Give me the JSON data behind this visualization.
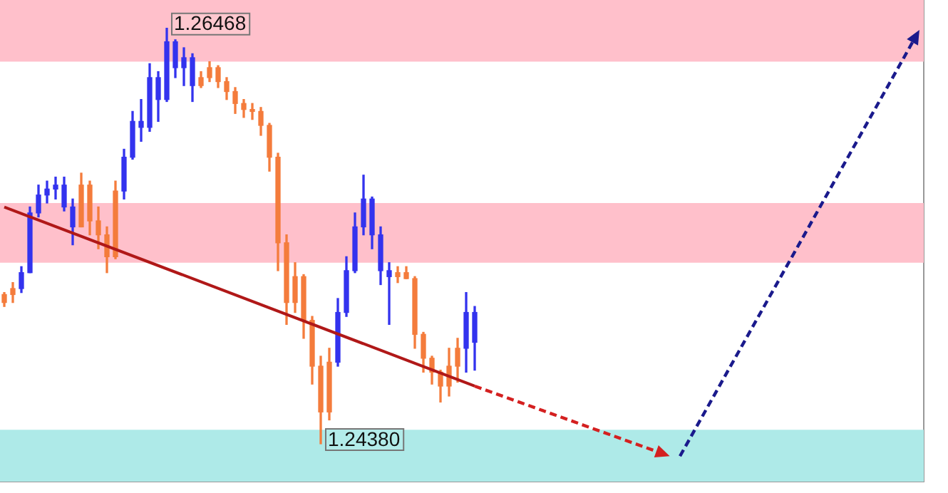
{
  "chart_data": {
    "type": "candlestick",
    "tick_labels": false,
    "grid": false,
    "legend": false,
    "categories": [
      null,
      null,
      null,
      null,
      null,
      null,
      null,
      null,
      null,
      null,
      null,
      null,
      null,
      null,
      null,
      null,
      null,
      null,
      null,
      null,
      null,
      null,
      null,
      null,
      null,
      null,
      null,
      null,
      null,
      null,
      null,
      null,
      null,
      null,
      null,
      null,
      null,
      null,
      null,
      null,
      null,
      null,
      null,
      null,
      null,
      null,
      null,
      null,
      null,
      null,
      null,
      null,
      null,
      null,
      null,
      null,
      null,
      null,
      null,
      null,
      null,
      null,
      null,
      null,
      null,
      null,
      null,
      null,
      null,
      null,
      null,
      null,
      null,
      null,
      null,
      null,
      null,
      null,
      null,
      null,
      null,
      null,
      null,
      null,
      null,
      null,
      null,
      null,
      null,
      null,
      null,
      null,
      null,
      null,
      null,
      null,
      null,
      null,
      null,
      null,
      null,
      null,
      null,
      null,
      null,
      null,
      null,
      null
    ],
    "ylim": [
      1.2419,
      1.2661
    ],
    "ohlc": [
      [
        1.2513,
        1.2514,
        1.2507,
        1.2509
      ],
      [
        1.2516,
        1.2519,
        1.2509,
        1.2513
      ],
      [
        1.2516,
        1.2527,
        1.2514,
        1.2524
      ],
      [
        1.2524,
        1.2557,
        1.2524,
        1.2554
      ],
      [
        1.2554,
        1.2568,
        1.2552,
        1.2563
      ],
      [
        1.2563,
        1.257,
        1.2559,
        1.2566
      ],
      [
        1.2566,
        1.2572,
        1.2561,
        1.2568
      ],
      [
        1.2557,
        1.2572,
        1.2555,
        1.2568
      ],
      [
        1.2547,
        1.2561,
        1.2538,
        1.2557
      ],
      [
        1.2568,
        1.2574,
        1.2547,
        1.2547
      ],
      [
        1.2568,
        1.257,
        1.2543,
        1.255
      ],
      [
        1.255,
        1.2557,
        1.2536,
        1.2543
      ],
      [
        1.2543,
        1.2547,
        1.2524,
        1.2532
      ],
      [
        1.2565,
        1.257,
        1.2531,
        1.2532
      ],
      [
        1.2565,
        1.2586,
        1.2561,
        1.2582
      ],
      [
        1.2582,
        1.2605,
        1.2581,
        1.26
      ],
      [
        1.2597,
        1.2611,
        1.259,
        1.26
      ],
      [
        1.2597,
        1.2629,
        1.2595,
        1.2622
      ],
      [
        1.2611,
        1.2625,
        1.26,
        1.2622
      ],
      [
        1.2611,
        1.26468,
        1.261,
        1.264
      ],
      [
        1.2627,
        1.2641,
        1.2622,
        1.264
      ],
      [
        1.2627,
        1.2637,
        1.2618,
        1.2632
      ],
      [
        1.2618,
        1.2634,
        1.261,
        1.2632
      ],
      [
        1.2622,
        1.2625,
        1.2617,
        1.2618
      ],
      [
        1.2627,
        1.263,
        1.262,
        1.2622
      ],
      [
        1.2627,
        1.2628,
        1.2617,
        1.262
      ],
      [
        1.262,
        1.2622,
        1.2611,
        1.2615
      ],
      [
        1.2615,
        1.2617,
        1.2604,
        1.2609
      ],
      [
        1.2609,
        1.2611,
        1.2602,
        1.2606
      ],
      [
        1.2606,
        1.2609,
        1.2601,
        1.2605
      ],
      [
        1.2605,
        1.2607,
        1.2593,
        1.2598
      ],
      [
        1.2598,
        1.2599,
        1.2575,
        1.2582
      ],
      [
        1.2582,
        1.2584,
        1.2525,
        1.2539
      ],
      [
        1.2539,
        1.2543,
        1.2498,
        1.2509
      ],
      [
        1.2522,
        1.2529,
        1.2504,
        1.2509
      ],
      [
        1.2522,
        1.2523,
        1.2491,
        1.25
      ],
      [
        1.25,
        1.2502,
        1.2468,
        1.2477
      ],
      [
        1.2477,
        1.2482,
        1.2438,
        1.2454
      ],
      [
        1.2479,
        1.2486,
        1.245,
        1.2454
      ],
      [
        1.2479,
        1.2511,
        1.2477,
        1.2504
      ],
      [
        1.2504,
        1.2532,
        1.2502,
        1.2525
      ],
      [
        1.2525,
        1.2554,
        1.2524,
        1.2547
      ],
      [
        1.2547,
        1.2573,
        1.2543,
        1.2561
      ],
      [
        1.2543,
        1.2562,
        1.2536,
        1.2561
      ],
      [
        1.2525,
        1.2547,
        1.2518,
        1.2543
      ],
      [
        1.2522,
        1.2529,
        1.2498,
        1.2525
      ],
      [
        1.2524,
        1.2527,
        1.2519,
        1.2522
      ],
      [
        1.2524,
        1.2527,
        1.2521,
        1.2521
      ],
      [
        1.2521,
        1.2522,
        1.2486,
        1.2493
      ],
      [
        1.2493,
        1.2494,
        1.2474,
        1.2481
      ],
      [
        1.2481,
        1.2482,
        1.2468,
        1.2474
      ],
      [
        1.2474,
        1.2475,
        1.2459,
        1.2467
      ],
      [
        1.2477,
        1.2486,
        1.2462,
        1.2467
      ],
      [
        1.2486,
        1.2491,
        1.2469,
        1.2477
      ],
      [
        1.2486,
        1.2514,
        1.2474,
        1.2504
      ],
      [
        1.2489,
        1.2507,
        1.2475,
        1.2504
      ],
      null,
      null,
      null,
      null,
      null,
      null,
      null,
      null,
      null,
      null,
      null,
      null,
      null,
      null,
      null,
      null,
      null,
      null,
      null,
      null,
      null,
      null,
      null,
      null,
      null,
      null,
      null,
      null,
      null,
      null,
      null,
      null,
      null,
      null,
      null,
      null,
      null,
      null,
      null,
      null,
      null,
      null,
      null,
      null,
      null,
      null,
      null,
      null,
      null,
      null,
      null,
      null
    ],
    "colors": [
      "#f47c3c",
      "#f47c3c",
      "#3333ee",
      "#3333ee",
      "#3333ee",
      "#3333ee",
      "#3333ee",
      "#3333ee",
      "#3333ee",
      "#f47c3c",
      "#f47c3c",
      "#f47c3c",
      "#f47c3c",
      "#f47c3c",
      "#3333ee",
      "#3333ee",
      "#3333ee",
      "#3333ee",
      "#3333ee",
      "#3333ee",
      "#3333ee",
      "#3333ee",
      "#3333ee",
      "#f47c3c",
      "#f47c3c",
      "#f47c3c",
      "#f47c3c",
      "#f47c3c",
      "#f47c3c",
      "#f47c3c",
      "#f47c3c",
      "#f47c3c",
      "#f47c3c",
      "#f47c3c",
      "#f47c3c",
      "#f47c3c",
      "#f47c3c",
      "#f47c3c",
      "#f47c3c",
      "#3333ee",
      "#3333ee",
      "#3333ee",
      "#3333ee",
      "#3333ee",
      "#3333ee",
      "#3333ee",
      "#f47c3c",
      "#f47c3c",
      "#f47c3c",
      "#f47c3c",
      "#f47c3c",
      "#f47c3c",
      "#f47c3c",
      "#f47c3c",
      "#3333ee",
      "#3333ee",
      null,
      null,
      null,
      null,
      null,
      null,
      null,
      null,
      null,
      null,
      null,
      null,
      null,
      null,
      null,
      null,
      null,
      null,
      null,
      null,
      null,
      null,
      null,
      null,
      null,
      null,
      null,
      null,
      null,
      null,
      null,
      null,
      null,
      null,
      null,
      null,
      null,
      null,
      null,
      null,
      null,
      null,
      null,
      null,
      null,
      null,
      null,
      null,
      null,
      null,
      null,
      null
    ],
    "series": [
      {
        "type": "line",
        "color": "#b01818",
        "line_style": "solid",
        "values": [
          1.2557,
          null,
          null,
          null,
          null,
          null,
          null,
          null,
          null,
          null,
          null,
          null,
          null,
          null,
          null,
          null,
          null,
          null,
          null,
          null,
          null,
          null,
          null,
          null,
          null,
          null,
          null,
          null,
          null,
          null,
          null,
          null,
          null,
          null,
          null,
          null,
          null,
          null,
          null,
          null,
          null,
          null,
          null,
          null,
          null,
          null,
          null,
          null,
          null,
          null,
          null,
          null,
          null,
          null,
          null,
          1.2467,
          null,
          null,
          null,
          null,
          null,
          null,
          null,
          null,
          null,
          null,
          null,
          null,
          null,
          null,
          null,
          null,
          null,
          null,
          null,
          null,
          null,
          null,
          null,
          null,
          null,
          null,
          null,
          null,
          null,
          null,
          null,
          null,
          null,
          null,
          null,
          null,
          null,
          null,
          null,
          null,
          null,
          null,
          null,
          null,
          null,
          null,
          null,
          null,
          null,
          null,
          null,
          null
        ]
      }
    ],
    "bands": [
      {
        "axis": "y",
        "from": 1.263,
        "to": 1.2661,
        "color": "#ffc0cb"
      },
      {
        "axis": "y",
        "from": 1.2529,
        "to": 1.2559,
        "color": "#ffc0cb"
      },
      {
        "axis": "y",
        "from": 1.2419,
        "to": 1.2445,
        "color": "#aeeae8"
      }
    ],
    "annotations": [
      "1.26468",
      "1.24380"
    ]
  }
}
